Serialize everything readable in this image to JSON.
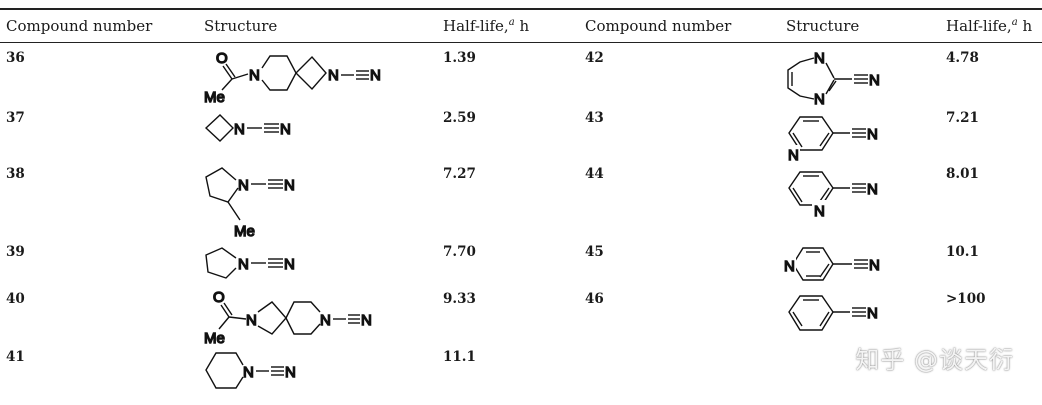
{
  "headers": {
    "col1": "Compound number",
    "col2": "Structure",
    "col3": "Half-life,",
    "col3_sup": "a",
    "col3_unit": " h"
  },
  "rows_left": [
    {
      "number": "36",
      "half_life": "1.39"
    },
    {
      "number": "37",
      "half_life": "2.59"
    },
    {
      "number": "38",
      "half_life": "7.27"
    },
    {
      "number": "39",
      "half_life": "7.70"
    },
    {
      "number": "40",
      "half_life": "9.33"
    },
    {
      "number": "41",
      "half_life": "11.1"
    }
  ],
  "rows_right": [
    {
      "number": "42",
      "half_life": "4.78"
    },
    {
      "number": "43",
      "half_life": "7.21"
    },
    {
      "number": "44",
      "half_life": "8.01"
    },
    {
      "number": "45",
      "half_life": "10.1"
    },
    {
      "number": "46",
      "half_life": ">100"
    }
  ],
  "atoms": {
    "n": "N",
    "o": "O",
    "me": "Me"
  },
  "watermark": "知乎 @谈天衍"
}
